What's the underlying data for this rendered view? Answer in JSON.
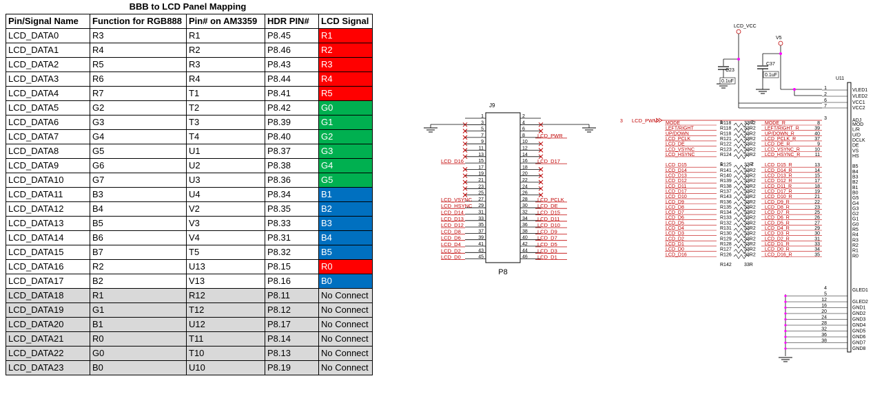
{
  "title": "BBB to LCD Panel Mapping",
  "colors": {
    "red": "#ff0000",
    "green": "#00b050",
    "blue": "#0070c0",
    "grey": "#d9d9d9",
    "wire_red": "#c00000",
    "wire_black": "#000000",
    "junction": "#ff00ff"
  },
  "table": {
    "headers": [
      "Pin/Signal Name",
      "Function for RGB888",
      "Pin# on AM3359",
      "HDR PIN#",
      "LCD Signal"
    ],
    "rows": [
      {
        "pin": "LCD_DATA0",
        "func": "R3",
        "am": "R1",
        "hdr": "P8.45",
        "sig": "R1",
        "color": "red"
      },
      {
        "pin": "LCD_DATA1",
        "func": "R4",
        "am": "R2",
        "hdr": "P8.46",
        "sig": "R2",
        "color": "red"
      },
      {
        "pin": "LCD_DATA2",
        "func": "R5",
        "am": "R3",
        "hdr": "P8.43",
        "sig": "R3",
        "color": "red"
      },
      {
        "pin": "LCD_DATA3",
        "func": "R6",
        "am": "R4",
        "hdr": "P8.44",
        "sig": "R4",
        "color": "red"
      },
      {
        "pin": "LCD_DATA4",
        "func": "R7",
        "am": "T1",
        "hdr": "P8.41",
        "sig": "R5",
        "color": "red"
      },
      {
        "pin": "LCD_DATA5",
        "func": "G2",
        "am": "T2",
        "hdr": "P8.42",
        "sig": "G0",
        "color": "green"
      },
      {
        "pin": "LCD_DATA6",
        "func": "G3",
        "am": "T3",
        "hdr": "P8.39",
        "sig": "G1",
        "color": "green"
      },
      {
        "pin": "LCD_DATA7",
        "func": "G4",
        "am": "T4",
        "hdr": "P8.40",
        "sig": "G2",
        "color": "green"
      },
      {
        "pin": "LCD_DATA8",
        "func": "G5",
        "am": "U1",
        "hdr": "P8.37",
        "sig": "G3",
        "color": "green"
      },
      {
        "pin": "LCD_DATA9",
        "func": "G6",
        "am": "U2",
        "hdr": "P8.38",
        "sig": "G4",
        "color": "green"
      },
      {
        "pin": "LCD_DATA10",
        "func": "G7",
        "am": "U3",
        "hdr": "P8.36",
        "sig": "G5",
        "color": "green"
      },
      {
        "pin": "LCD_DATA11",
        "func": "B3",
        "am": "U4",
        "hdr": "P8.34",
        "sig": "B1",
        "color": "blue"
      },
      {
        "pin": "LCD_DATA12",
        "func": "B4",
        "am": "V2",
        "hdr": "P8.35",
        "sig": "B2",
        "color": "blue"
      },
      {
        "pin": "LCD_DATA13",
        "func": "B5",
        "am": "V3",
        "hdr": "P8.33",
        "sig": "B3",
        "color": "blue"
      },
      {
        "pin": "LCD_DATA14",
        "func": "B6",
        "am": "V4",
        "hdr": "P8.31",
        "sig": "B4",
        "color": "blue"
      },
      {
        "pin": "LCD_DATA15",
        "func": "B7",
        "am": "T5",
        "hdr": "P8.32",
        "sig": "B5",
        "color": "blue"
      },
      {
        "pin": "LCD_DATA16",
        "func": "R2",
        "am": "U13",
        "hdr": "P8.15",
        "sig": "R0",
        "color": "red"
      },
      {
        "pin": "LCD_DATA17",
        "func": "B2",
        "am": "V13",
        "hdr": "P8.16",
        "sig": "B0",
        "color": "blue"
      },
      {
        "pin": "LCD_DATA18",
        "func": "R1",
        "am": "R12",
        "hdr": "P8.11",
        "sig": "No Connect",
        "color": "none"
      },
      {
        "pin": "LCD_DATA19",
        "func": "G1",
        "am": "T12",
        "hdr": "P8.12",
        "sig": "No Connect",
        "color": "none"
      },
      {
        "pin": "LCD_DATA20",
        "func": "B1",
        "am": "U12",
        "hdr": "P8.17",
        "sig": "No Connect",
        "color": "none"
      },
      {
        "pin": "LCD_DATA21",
        "func": "R0",
        "am": "T11",
        "hdr": "P8.14",
        "sig": "No Connect",
        "color": "none"
      },
      {
        "pin": "LCD_DATA22",
        "func": "G0",
        "am": "T10",
        "hdr": "P8.13",
        "sig": "No Connect",
        "color": "none"
      },
      {
        "pin": "LCD_DATA23",
        "func": "B0",
        "am": "U10",
        "hdr": "P8.19",
        "sig": "No Connect",
        "color": "none"
      }
    ]
  },
  "schematic": {
    "header": {
      "ref": "J9",
      "name": "P8",
      "odd_pins": [
        "1",
        "3",
        "5",
        "7",
        "9",
        "11",
        "13",
        "15",
        "17",
        "19",
        "21",
        "23",
        "25",
        "27",
        "29",
        "31",
        "33",
        "35",
        "37",
        "39",
        "41",
        "43",
        "45"
      ],
      "even_pins": [
        "2",
        "4",
        "6",
        "8",
        "10",
        "12",
        "14",
        "16",
        "18",
        "20",
        "22",
        "24",
        "26",
        "28",
        "30",
        "32",
        "34",
        "36",
        "38",
        "40",
        "42",
        "44",
        "46"
      ],
      "left_labels": {
        "15": "LCD_D16",
        "27": "LCD_VSYNC",
        "29": "LCD_HSYNC",
        "31": "LCD_D14",
        "33": "LCD_D13",
        "35": "LCD_D12",
        "37": "LCD_D8",
        "39": "LCD_D6",
        "41": "LCD_D4",
        "43": "LCD_D2",
        "45": "LCD_D0"
      },
      "right_labels": {
        "8": "LCD_PWR",
        "16": "LCD_D17",
        "28": "LCD_PCLK",
        "30": "LCD_DE",
        "32": "LCD_D15",
        "34": "LCD_D11",
        "36": "LCD_D10",
        "38": "LCD_D9",
        "40": "LCD_D7",
        "42": "LCD_D5",
        "44": "LCD_D3",
        "46": "LCD_D1"
      },
      "nc_left": [
        "3",
        "5",
        "7",
        "9",
        "11",
        "13",
        "17",
        "19",
        "21",
        "23",
        "25"
      ],
      "nc_right": [
        "4",
        "6",
        "10",
        "12",
        "14",
        "18",
        "20",
        "22",
        "24",
        "26"
      ]
    },
    "power": {
      "lcd_vcc": "LCD_VCC",
      "v5": "V5",
      "c23": "C23",
      "c23_val": "0.1uF",
      "c37": "C37",
      "c37_val": "0.1uF"
    },
    "pwm": {
      "num": "3",
      "label": "LCD_PWM"
    },
    "resistor_value": "33R",
    "res_rows": [
      {
        "pinl": "1",
        "pinr": "2",
        "left": "MODE",
        "rl": "R118",
        "rr": "33R2",
        "right": "MODE_R",
        "upin": "8",
        "ulabel": "MOD"
      },
      {
        "pinl": "",
        "pinr": "",
        "left": "LEFT/RIGHT",
        "rl": "R118",
        "rr": "33R2",
        "right": "LEFT/RIGHT_R",
        "upin": "39",
        "ulabel": "L/R"
      },
      {
        "pinl": "",
        "pinr": "",
        "left": "UP/DOWN",
        "rl": "R118",
        "rr": "33R2",
        "right": "UP/DOWN_R",
        "upin": "40",
        "ulabel": "U/D"
      },
      {
        "pinl": "",
        "pinr": "",
        "left": "LCD_PCLK",
        "rl": "R121",
        "rr": "33R2",
        "right": "LCD_PCLK_R",
        "upin": "37",
        "ulabel": "DCLK"
      },
      {
        "pinl": "",
        "pinr": "",
        "left": "LCD_DE",
        "rl": "R122",
        "rr": "33R2",
        "right": "LCD_DE_R",
        "upin": "9",
        "ulabel": "DE"
      },
      {
        "pinl": "",
        "pinr": "",
        "left": "LCD_VSYNC",
        "rl": "R123",
        "rr": "33R2",
        "right": "LCD_VSYNC_R",
        "upin": "10",
        "ulabel": "VS"
      },
      {
        "pinl": "",
        "pinr": "",
        "left": "LCD_HSYNC",
        "rl": "R124",
        "rr": "33R2",
        "right": "LCD_HSYNC_R",
        "upin": "11",
        "ulabel": "HS"
      },
      {
        "pinl": "",
        "pinr": "",
        "left": "",
        "rl": "R125",
        "rr": "33R",
        "right": "",
        "upin": "",
        "ulabel": ""
      },
      {
        "pinl": "1",
        "pinr": "2",
        "left": "LCD_D15",
        "rl": "",
        "rr": "",
        "right": "LCD_D15_R",
        "upin": "13",
        "ulabel": "B5"
      },
      {
        "pinl": "",
        "pinr": "",
        "left": "LCD_D14",
        "rl": "R141",
        "rr": "33R2",
        "right": "LCD_D14_R",
        "upin": "14",
        "ulabel": "B4"
      },
      {
        "pinl": "",
        "pinr": "",
        "left": "LCD_D13",
        "rl": "R140",
        "rr": "33R2",
        "right": "LCD_D13_R",
        "upin": "15",
        "ulabel": "B3"
      },
      {
        "pinl": "",
        "pinr": "",
        "left": "LCD_D12",
        "rl": "R139",
        "rr": "33R2",
        "right": "LCD_D12_R",
        "upin": "17",
        "ulabel": "B2"
      },
      {
        "pinl": "",
        "pinr": "",
        "left": "LCD_D11",
        "rl": "R138",
        "rr": "33R2",
        "right": "LCD_D11_R",
        "upin": "18",
        "ulabel": "B1"
      },
      {
        "pinl": "",
        "pinr": "",
        "left": "LCD_D17",
        "rl": "R137",
        "rr": "33R2",
        "right": "LCD_D17_R",
        "upin": "19",
        "ulabel": "B0"
      },
      {
        "pinl": "",
        "pinr": "",
        "left": "LCD_D10",
        "rl": "R143",
        "rr": "33R2",
        "right": "LCD_D10_R",
        "upin": "21",
        "ulabel": "G5"
      },
      {
        "pinl": "",
        "pinr": "",
        "left": "LCD_D9",
        "rl": "R136",
        "rr": "33R2",
        "right": "LCD_D9_R",
        "upin": "22",
        "ulabel": "G4"
      },
      {
        "pinl": "",
        "pinr": "",
        "left": "LCD_D8",
        "rl": "R135",
        "rr": "33R2",
        "right": "LCD_D8_R",
        "upin": "23",
        "ulabel": "G3"
      },
      {
        "pinl": "",
        "pinr": "",
        "left": "LCD_D7",
        "rl": "R134",
        "rr": "33R2",
        "right": "LCD_D7_R",
        "upin": "25",
        "ulabel": "G2"
      },
      {
        "pinl": "",
        "pinr": "",
        "left": "LCD_D6",
        "rl": "R133",
        "rr": "33R2",
        "right": "LCD_D6_R",
        "upin": "26",
        "ulabel": "G1"
      },
      {
        "pinl": "",
        "pinr": "",
        "left": "LCD_D5",
        "rl": "R132",
        "rr": "33R2",
        "right": "LCD_D5_R",
        "upin": "27",
        "ulabel": "G0"
      },
      {
        "pinl": "",
        "pinr": "",
        "left": "LCD_D4",
        "rl": "R131",
        "rr": "33R2",
        "right": "LCD_D4_R",
        "upin": "29",
        "ulabel": "R5"
      },
      {
        "pinl": "",
        "pinr": "",
        "left": "LCD_D3",
        "rl": "R130",
        "rr": "33R2",
        "right": "LCD_D3_R",
        "upin": "30",
        "ulabel": "R4"
      },
      {
        "pinl": "",
        "pinr": "",
        "left": "LCD_D2",
        "rl": "R129",
        "rr": "33R2",
        "right": "LCD_D2_R",
        "upin": "31",
        "ulabel": "R3"
      },
      {
        "pinl": "",
        "pinr": "",
        "left": "LCD_D1",
        "rl": "R128",
        "rr": "33R2",
        "right": "LCD_D1_R",
        "upin": "33",
        "ulabel": "R2"
      },
      {
        "pinl": "",
        "pinr": "",
        "left": "LCD_D0",
        "rl": "R127",
        "rr": "33R2",
        "right": "LCD_D0_R",
        "upin": "34",
        "ulabel": "R1"
      },
      {
        "pinl": "",
        "pinr": "",
        "left": "LCD_D16",
        "rl": "R126",
        "rr": "33R2",
        "right": "LCD_D16_R",
        "upin": "35",
        "ulabel": "R0"
      },
      {
        "pinl": "",
        "pinr": "",
        "left": "",
        "rl": "R142",
        "rr": "33R",
        "right": "",
        "upin": "",
        "ulabel": ""
      }
    ],
    "u11": {
      "ref": "U11",
      "power_pins": [
        {
          "pin": "1",
          "label": "VLED1"
        },
        {
          "pin": "2",
          "label": "VLED2"
        },
        {
          "pin": "6",
          "label": "VCC1"
        },
        {
          "pin": "7",
          "label": "VCC2"
        }
      ],
      "pwm_pin": {
        "pin": "3",
        "label": "ADJ"
      },
      "gnd_pins": [
        {
          "pin": "4",
          "label": "GLED1"
        },
        {
          "pin": "5",
          "label": ""
        },
        {
          "pin": "12",
          "label": "GLED2"
        },
        {
          "pin": "16",
          "label": "GND1"
        },
        {
          "pin": "20",
          "label": "GND2"
        },
        {
          "pin": "24",
          "label": "GND3"
        },
        {
          "pin": "28",
          "label": "GND4"
        },
        {
          "pin": "32",
          "label": "GND5"
        },
        {
          "pin": "36",
          "label": "GND6"
        },
        {
          "pin": "38",
          "label": "GND7"
        },
        {
          "pin": "",
          "label": "GND8"
        }
      ]
    }
  }
}
